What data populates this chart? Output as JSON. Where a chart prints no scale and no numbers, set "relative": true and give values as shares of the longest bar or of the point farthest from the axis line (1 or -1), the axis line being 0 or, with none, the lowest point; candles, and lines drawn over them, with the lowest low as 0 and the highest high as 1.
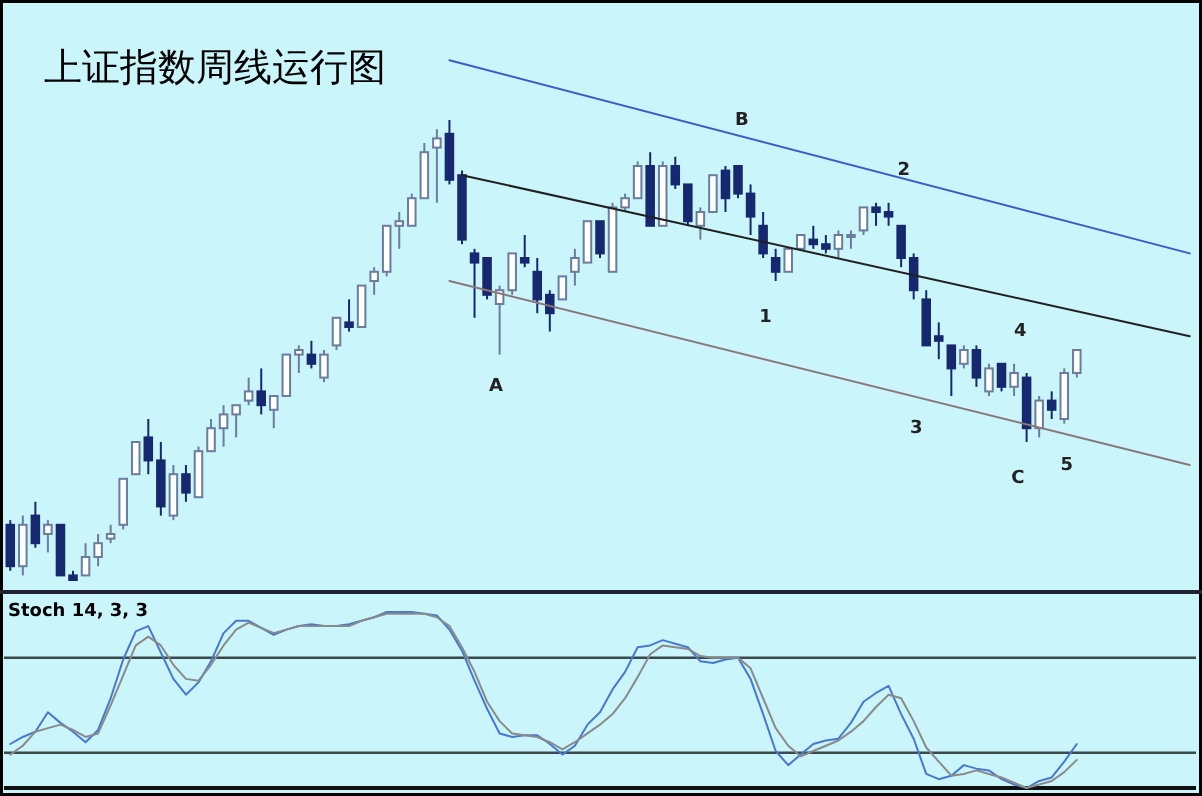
{
  "chart_data": [
    {
      "type": "candlestick",
      "title": "上证指数周线运行图",
      "relative": true,
      "categories": [
        null,
        null,
        null,
        null,
        null,
        null,
        null,
        null,
        null,
        null,
        null,
        null,
        null,
        null,
        null,
        null,
        null,
        null,
        null,
        null,
        null,
        null,
        null,
        null,
        null,
        null,
        null,
        null,
        null,
        null,
        null,
        null,
        null,
        null,
        null,
        null,
        null,
        null,
        null,
        null,
        null,
        null,
        null,
        null,
        null,
        null,
        null,
        null,
        null,
        null,
        null,
        null,
        null,
        null,
        null,
        null,
        null,
        null,
        null,
        null,
        null,
        null,
        null,
        null,
        null,
        null,
        null,
        null,
        null,
        null,
        null,
        null,
        null,
        null,
        null,
        null,
        null,
        null,
        null,
        null,
        null,
        null,
        null,
        null,
        null,
        null,
        null,
        null,
        null,
        null,
        null,
        null,
        null,
        null,
        null
      ],
      "ohlc": [
        [
          0.12,
          0.13,
          0.02,
          0.03
        ],
        [
          0.03,
          0.14,
          0.01,
          0.12
        ],
        [
          0.14,
          0.17,
          0.07,
          0.08
        ],
        [
          0.1,
          0.13,
          0.06,
          0.12
        ],
        [
          0.12,
          0.12,
          0.01,
          0.01
        ],
        [
          0.01,
          0.02,
          0,
          0
        ],
        [
          0.01,
          0.08,
          0.01,
          0.05
        ],
        [
          0.05,
          0.1,
          0.03,
          0.08
        ],
        [
          0.09,
          0.12,
          0.08,
          0.1
        ],
        [
          0.12,
          0.22,
          0.11,
          0.22
        ],
        [
          0.23,
          0.3,
          0.23,
          0.3
        ],
        [
          0.31,
          0.35,
          0.23,
          0.26
        ],
        [
          0.26,
          0.3,
          0.14,
          0.16
        ],
        [
          0.14,
          0.25,
          0.13,
          0.23
        ],
        [
          0.23,
          0.25,
          0.17,
          0.19
        ],
        [
          0.18,
          0.29,
          0.18,
          0.28
        ],
        [
          0.28,
          0.35,
          0.28,
          0.33
        ],
        [
          0.33,
          0.38,
          0.29,
          0.36
        ],
        [
          0.36,
          0.38,
          0.31,
          0.38
        ],
        [
          0.39,
          0.44,
          0.38,
          0.41
        ],
        [
          0.41,
          0.46,
          0.36,
          0.38
        ],
        [
          0.37,
          0.4,
          0.33,
          0.4
        ],
        [
          0.4,
          0.49,
          0.4,
          0.49
        ],
        [
          0.49,
          0.51,
          0.45,
          0.5
        ],
        [
          0.49,
          0.52,
          0.46,
          0.47
        ],
        [
          0.44,
          0.5,
          0.43,
          0.49
        ],
        [
          0.51,
          0.57,
          0.5,
          0.57
        ],
        [
          0.56,
          0.61,
          0.54,
          0.55
        ],
        [
          0.55,
          0.64,
          0.55,
          0.64
        ],
        [
          0.65,
          0.68,
          0.62,
          0.67
        ],
        [
          0.67,
          0.77,
          0.66,
          0.77
        ],
        [
          0.77,
          0.8,
          0.72,
          0.78
        ],
        [
          0.77,
          0.84,
          0.77,
          0.83
        ],
        [
          0.83,
          0.95,
          0.83,
          0.93
        ],
        [
          0.94,
          0.98,
          0.82,
          0.96
        ],
        [
          0.97,
          1,
          0.86,
          0.87
        ],
        [
          0.88,
          0.89,
          0.73,
          0.74
        ],
        [
          0.71,
          0.72,
          0.57,
          0.69
        ],
        [
          0.7,
          0.7,
          0.61,
          0.62
        ],
        [
          0.6,
          0.64,
          0.49,
          0.63
        ],
        [
          0.63,
          0.71,
          0.62,
          0.71
        ],
        [
          0.7,
          0.75,
          0.68,
          0.69
        ],
        [
          0.67,
          0.7,
          0.58,
          0.61
        ],
        [
          0.62,
          0.63,
          0.54,
          0.58
        ],
        [
          0.61,
          0.66,
          0.61,
          0.66
        ],
        [
          0.67,
          0.72,
          0.64,
          0.7
        ],
        [
          0.69,
          0.78,
          0.69,
          0.78
        ],
        [
          0.78,
          0.78,
          0.7,
          0.71
        ],
        [
          0.67,
          0.82,
          0.67,
          0.81
        ],
        [
          0.81,
          0.84,
          0.8,
          0.83
        ],
        [
          0.83,
          0.91,
          0.83,
          0.9
        ],
        [
          0.9,
          0.93,
          0.77,
          0.77
        ],
        [
          0.77,
          0.91,
          0.77,
          0.9
        ],
        [
          0.9,
          0.92,
          0.85,
          0.86
        ],
        [
          0.86,
          0.86,
          0.77,
          0.78
        ],
        [
          0.77,
          0.81,
          0.74,
          0.8
        ],
        [
          0.8,
          0.88,
          0.8,
          0.88
        ],
        [
          0.89,
          0.9,
          0.8,
          0.83
        ],
        [
          0.9,
          0.9,
          0.83,
          0.84
        ],
        [
          0.84,
          0.86,
          0.75,
          0.79
        ],
        [
          0.77,
          0.8,
          0.7,
          0.71
        ],
        [
          0.7,
          0.72,
          0.65,
          0.67
        ],
        [
          0.67,
          0.72,
          0.67,
          0.72
        ],
        [
          0.72,
          0.75,
          0.72,
          0.75
        ],
        [
          0.74,
          0.77,
          0.72,
          0.73
        ],
        [
          0.73,
          0.75,
          0.71,
          0.72
        ],
        [
          0.72,
          0.76,
          0.7,
          0.75
        ],
        [
          0.75,
          0.76,
          0.72,
          0.75
        ],
        [
          0.76,
          0.81,
          0.75,
          0.81
        ],
        [
          0.81,
          0.82,
          0.77,
          0.8
        ],
        [
          0.8,
          0.82,
          0.77,
          0.79
        ],
        [
          0.77,
          0.77,
          0.68,
          0.7
        ],
        [
          0.7,
          0.71,
          0.61,
          0.63
        ],
        [
          0.61,
          0.63,
          0.51,
          0.51
        ],
        [
          0.53,
          0.56,
          0.48,
          0.52
        ],
        [
          0.51,
          0.51,
          0.4,
          0.46
        ],
        [
          0.47,
          0.51,
          0.46,
          0.5
        ],
        [
          0.5,
          0.51,
          0.42,
          0.44
        ],
        [
          0.41,
          0.47,
          0.4,
          0.46
        ],
        [
          0.47,
          0.47,
          0.41,
          0.42
        ],
        [
          0.42,
          0.47,
          0.4,
          0.45
        ],
        [
          0.44,
          0.45,
          0.3,
          0.33
        ],
        [
          0.33,
          0.4,
          0.31,
          0.39
        ],
        [
          0.39,
          0.41,
          0.35,
          0.37
        ],
        [
          0.35,
          0.46,
          0.34,
          0.45
        ],
        [
          0.45,
          0.5,
          0.44,
          0.5
        ],
        null,
        null,
        null,
        null,
        null,
        null,
        null,
        null,
        null
      ],
      "series": [
        {
          "type": "line",
          "color": "#3a5cc8",
          "values": [
            null,
            null,
            null,
            null,
            null,
            null,
            null,
            null,
            null,
            null,
            null,
            null,
            null,
            null,
            null,
            null,
            null,
            null,
            null,
            null,
            null,
            null,
            null,
            null,
            null,
            null,
            null,
            null,
            null,
            null,
            null,
            null,
            null,
            null,
            null,
            1.13,
            null,
            null,
            null,
            null,
            null,
            null,
            null,
            null,
            null,
            null,
            null,
            null,
            null,
            null,
            null,
            null,
            null,
            null,
            null,
            null,
            null,
            null,
            null,
            null,
            null,
            null,
            null,
            null,
            null,
            null,
            null,
            null,
            null,
            null,
            null,
            null,
            null,
            null,
            null,
            null,
            null,
            null,
            null,
            null,
            null,
            null,
            null,
            null,
            null,
            null,
            null,
            null,
            null,
            null,
            null,
            null,
            null,
            null,
            0.71
          ]
        },
        {
          "type": "line",
          "color": "#202020",
          "values": [
            null,
            null,
            null,
            null,
            null,
            null,
            null,
            null,
            null,
            null,
            null,
            null,
            null,
            null,
            null,
            null,
            null,
            null,
            null,
            null,
            null,
            null,
            null,
            null,
            null,
            null,
            null,
            null,
            null,
            null,
            null,
            null,
            null,
            null,
            null,
            null,
            0.88,
            null,
            null,
            null,
            null,
            null,
            null,
            null,
            null,
            null,
            null,
            null,
            null,
            null,
            null,
            null,
            null,
            null,
            null,
            null,
            null,
            null,
            null,
            null,
            null,
            null,
            null,
            null,
            null,
            null,
            null,
            null,
            null,
            null,
            null,
            null,
            null,
            null,
            null,
            null,
            null,
            null,
            null,
            null,
            null,
            null,
            null,
            null,
            null,
            null,
            null,
            null,
            null,
            null,
            null,
            null,
            null,
            null,
            0.53
          ]
        },
        {
          "type": "line",
          "color": "#8a7878",
          "values": [
            null,
            null,
            null,
            null,
            null,
            null,
            null,
            null,
            null,
            null,
            null,
            null,
            null,
            null,
            null,
            null,
            null,
            null,
            null,
            null,
            null,
            null,
            null,
            null,
            null,
            null,
            null,
            null,
            null,
            null,
            null,
            null,
            null,
            null,
            null,
            0.65,
            null,
            null,
            null,
            null,
            null,
            null,
            null,
            null,
            null,
            null,
            null,
            null,
            null,
            null,
            null,
            null,
            null,
            null,
            null,
            null,
            null,
            null,
            null,
            null,
            null,
            null,
            null,
            null,
            null,
            null,
            null,
            null,
            null,
            null,
            null,
            null,
            null,
            null,
            null,
            null,
            null,
            null,
            null,
            null,
            null,
            null,
            null,
            null,
            null,
            null,
            null,
            null,
            null,
            null,
            null,
            null,
            null,
            null,
            0.25
          ]
        }
      ],
      "annotations": [
        "A",
        "B",
        "C",
        "1",
        "2",
        "3",
        "4",
        "5"
      ]
    },
    {
      "type": "line",
      "title": "Stoch 14, 3, 3",
      "relative": true,
      "categories": [
        null,
        null,
        null,
        null,
        null,
        null,
        null,
        null,
        null,
        null,
        null,
        null,
        null,
        null,
        null,
        null,
        null,
        null,
        null,
        null,
        null,
        null,
        null,
        null,
        null,
        null,
        null,
        null,
        null,
        null,
        null,
        null,
        null,
        null,
        null,
        null,
        null,
        null,
        null,
        null,
        null,
        null,
        null,
        null,
        null,
        null,
        null,
        null,
        null,
        null,
        null,
        null,
        null,
        null,
        null,
        null,
        null,
        null,
        null,
        null,
        null,
        null,
        null,
        null,
        null,
        null,
        null,
        null,
        null,
        null,
        null,
        null,
        null,
        null,
        null,
        null,
        null,
        null,
        null,
        null,
        null,
        null,
        null,
        null,
        null,
        null,
        null,
        null,
        null,
        null,
        null,
        null,
        null,
        null,
        null
      ],
      "series": [
        {
          "color": "#4a78d0",
          "values": [
            0.25,
            0.29,
            0.32,
            0.43,
            0.37,
            0.32,
            0.26,
            0.33,
            0.51,
            0.73,
            0.89,
            0.92,
            0.77,
            0.62,
            0.53,
            0.6,
            0.72,
            0.88,
            0.95,
            0.95,
            0.91,
            0.87,
            0.9,
            0.92,
            0.93,
            0.92,
            0.92,
            0.93,
            0.95,
            0.97,
            1.0,
            1.0,
            1.0,
            0.99,
            0.98,
            0.9,
            0.78,
            0.61,
            0.45,
            0.31,
            0.29,
            0.3,
            0.3,
            0.25,
            0.19,
            0.24,
            0.36,
            0.43,
            0.56,
            0.66,
            0.8,
            0.81,
            0.84,
            0.82,
            0.8,
            0.72,
            0.71,
            0.73,
            0.74,
            0.62,
            0.42,
            0.21,
            0.13,
            0.19,
            0.25,
            0.27,
            0.28,
            0.37,
            0.49,
            0.54,
            0.58,
            0.42,
            0.28,
            0.08,
            0.05,
            0.07,
            0.13,
            0.11,
            0.1,
            0.05,
            0.02,
            0,
            0.04,
            0.06,
            0.15,
            0.25,
            null,
            null,
            null,
            null,
            null,
            null,
            null,
            null,
            null
          ]
        },
        {
          "color": "#8a8a8a",
          "values": [
            0.19,
            0.24,
            0.32,
            0.34,
            0.36,
            0.33,
            0.29,
            0.31,
            0.47,
            0.64,
            0.81,
            0.86,
            0.81,
            0.7,
            0.62,
            0.61,
            0.7,
            0.81,
            0.9,
            0.94,
            0.91,
            0.88,
            0.9,
            0.92,
            0.92,
            0.92,
            0.92,
            0.92,
            0.95,
            0.97,
            0.99,
            0.99,
            0.99,
            0.99,
            0.97,
            0.92,
            0.8,
            0.66,
            0.49,
            0.38,
            0.31,
            0.3,
            0.29,
            0.26,
            0.22,
            0.26,
            0.31,
            0.36,
            0.42,
            0.51,
            0.63,
            0.76,
            0.81,
            0.8,
            0.79,
            0.75,
            0.74,
            0.74,
            0.74,
            0.68,
            0.51,
            0.34,
            0.24,
            0.18,
            0.21,
            0.24,
            0.27,
            0.32,
            0.38,
            0.46,
            0.53,
            0.51,
            0.38,
            0.23,
            0.15,
            0.07,
            0.08,
            0.1,
            0.08,
            0.06,
            0.03,
            0,
            0.02,
            0.04,
            0.09,
            0.16,
            null,
            null,
            null,
            null,
            null,
            null,
            null,
            null,
            null
          ]
        }
      ],
      "ref_lines": [
        {
          "axis": "y",
          "value": 0.74,
          "color": "#3a4a4a"
        },
        {
          "axis": "y",
          "value": 0.2,
          "color": "#3a4a4a"
        }
      ]
    }
  ]
}
